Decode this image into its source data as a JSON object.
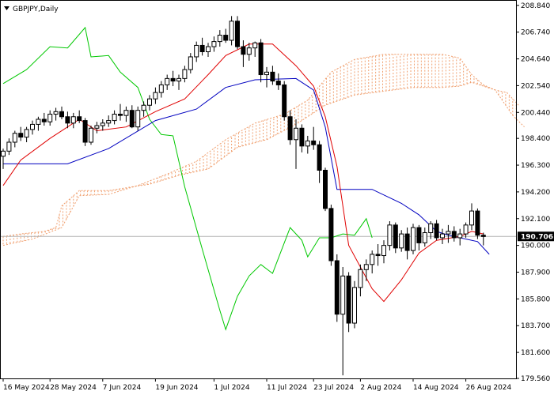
{
  "header": {
    "symbol_title": "GBPJPY,Daily"
  },
  "current_price_label": "190.706",
  "colors": {
    "background": "#ffffff",
    "frame": "#000000",
    "candle": "#000000",
    "tenkan": "#e00000",
    "kijun": "#0000c0",
    "chikou": "#00c800",
    "cloud": "#f0a070",
    "price_line": "#b4b4b4",
    "price_label_bg": "#000000"
  },
  "chart_data": {
    "type": "candlestick",
    "title": "GBPJPY,Daily",
    "indicator": "Ichimoku Kinko Hyo",
    "ylim": [
      179.56,
      209.2
    ],
    "y_ticks": [
      "208.840",
      "206.740",
      "204.640",
      "202.540",
      "200.440",
      "198.400",
      "196.300",
      "194.200",
      "192.100",
      "190.000",
      "187.900",
      "185.800",
      "183.700",
      "181.600",
      "179.560"
    ],
    "x_ticks": [
      "16 May 2024",
      "28 May 2024",
      "7 Jun 2024",
      "19 Jun 2024",
      "1 Jul 2024",
      "11 Jul 2024",
      "23 Jul 2024",
      "2 Aug 2024",
      "14 Aug 2024",
      "26 Aug 2024"
    ],
    "current_price": 190.706,
    "candles": [
      [
        197.0,
        197.6,
        196.0,
        197.4
      ],
      [
        197.4,
        198.4,
        197.1,
        198.1
      ],
      [
        198.1,
        199.0,
        197.7,
        198.8
      ],
      [
        198.8,
        199.3,
        198.2,
        198.5
      ],
      [
        198.5,
        199.3,
        198.1,
        199.1
      ],
      [
        199.1,
        199.8,
        198.7,
        199.5
      ],
      [
        199.5,
        200.1,
        199.0,
        199.9
      ],
      [
        199.9,
        200.4,
        199.4,
        199.7
      ],
      [
        199.7,
        200.6,
        199.4,
        200.3
      ],
      [
        200.3,
        200.8,
        199.8,
        200.5
      ],
      [
        200.5,
        200.9,
        199.9,
        200.1
      ],
      [
        200.1,
        200.5,
        199.2,
        199.6
      ],
      [
        199.6,
        200.4,
        199.2,
        200.1
      ],
      [
        200.1,
        200.6,
        199.6,
        199.8
      ],
      [
        199.8,
        200.0,
        197.8,
        198.1
      ],
      [
        198.1,
        199.4,
        197.9,
        199.2
      ],
      [
        199.2,
        199.7,
        198.8,
        199.4
      ],
      [
        199.4,
        199.9,
        199.0,
        199.6
      ],
      [
        199.6,
        200.2,
        199.3,
        199.8
      ],
      [
        199.8,
        200.6,
        199.5,
        200.3
      ],
      [
        200.3,
        201.1,
        199.8,
        200.2
      ],
      [
        200.2,
        200.9,
        199.7,
        200.6
      ],
      [
        200.6,
        201.0,
        199.2,
        199.3
      ],
      [
        199.3,
        200.9,
        199.0,
        200.6
      ],
      [
        200.6,
        201.3,
        200.1,
        201.0
      ],
      [
        201.0,
        201.8,
        200.6,
        201.5
      ],
      [
        201.5,
        202.4,
        201.1,
        202.0
      ],
      [
        202.0,
        202.9,
        201.6,
        202.6
      ],
      [
        202.6,
        203.4,
        202.2,
        203.1
      ],
      [
        203.1,
        203.7,
        202.5,
        202.9
      ],
      [
        202.9,
        203.4,
        202.2,
        203.1
      ],
      [
        203.1,
        204.1,
        202.8,
        203.8
      ],
      [
        203.8,
        205.1,
        203.5,
        204.8
      ],
      [
        204.8,
        206.0,
        204.4,
        205.7
      ],
      [
        205.7,
        206.3,
        204.9,
        205.2
      ],
      [
        205.2,
        205.9,
        204.8,
        205.6
      ],
      [
        205.6,
        206.4,
        205.2,
        206.0
      ],
      [
        206.0,
        206.9,
        205.6,
        206.5
      ],
      [
        206.5,
        207.0,
        205.9,
        206.1
      ],
      [
        206.1,
        208.0,
        205.7,
        207.6
      ],
      [
        207.6,
        208.0,
        205.4,
        205.6
      ],
      [
        205.6,
        206.1,
        204.0,
        205.0
      ],
      [
        205.0,
        205.9,
        204.5,
        205.5
      ],
      [
        205.5,
        206.0,
        204.8,
        205.9
      ],
      [
        205.9,
        206.2,
        202.8,
        203.4
      ],
      [
        203.4,
        204.0,
        202.4,
        203.6
      ],
      [
        203.6,
        204.1,
        202.6,
        202.9
      ],
      [
        202.9,
        203.5,
        202.2,
        202.6
      ],
      [
        202.6,
        202.9,
        199.8,
        200.1
      ],
      [
        200.1,
        200.6,
        197.9,
        198.3
      ],
      [
        198.3,
        199.9,
        196.0,
        199.2
      ],
      [
        199.2,
        199.5,
        197.3,
        197.8
      ],
      [
        197.8,
        198.6,
        197.2,
        198.2
      ],
      [
        198.2,
        199.3,
        197.5,
        197.9
      ],
      [
        197.9,
        198.2,
        194.9,
        195.9
      ],
      [
        195.9,
        196.1,
        192.7,
        192.9
      ],
      [
        192.9,
        193.2,
        188.4,
        188.8
      ],
      [
        188.8,
        189.3,
        184.0,
        184.6
      ],
      [
        184.6,
        188.3,
        179.8,
        187.6
      ],
      [
        187.6,
        187.9,
        183.2,
        183.9
      ],
      [
        183.9,
        187.2,
        183.5,
        186.7
      ],
      [
        186.7,
        188.5,
        186.0,
        188.1
      ],
      [
        188.1,
        188.9,
        187.2,
        188.5
      ],
      [
        188.5,
        189.6,
        187.8,
        189.3
      ],
      [
        189.3,
        190.1,
        188.4,
        189.2
      ],
      [
        189.2,
        190.4,
        188.6,
        190.0
      ],
      [
        190.0,
        191.9,
        189.6,
        191.6
      ],
      [
        191.6,
        191.8,
        189.4,
        189.8
      ],
      [
        189.8,
        191.2,
        189.5,
        190.9
      ],
      [
        190.9,
        191.4,
        188.9,
        189.6
      ],
      [
        189.6,
        191.7,
        189.3,
        191.4
      ],
      [
        191.4,
        191.6,
        189.6,
        190.2
      ],
      [
        190.2,
        191.4,
        189.9,
        191.0
      ],
      [
        191.0,
        191.9,
        190.5,
        191.7
      ],
      [
        191.7,
        192.0,
        190.4,
        190.6
      ],
      [
        190.6,
        191.3,
        190.1,
        190.9
      ],
      [
        190.9,
        191.6,
        190.2,
        191.1
      ],
      [
        191.1,
        191.5,
        190.3,
        190.6
      ],
      [
        190.6,
        191.3,
        190.0,
        190.9
      ],
      [
        190.9,
        191.8,
        190.6,
        191.6
      ],
      [
        191.6,
        193.3,
        191.2,
        192.7
      ],
      [
        192.7,
        192.9,
        190.5,
        190.8
      ],
      [
        190.8,
        191.0,
        190.0,
        190.7
      ]
    ],
    "tenkan": [
      [
        0,
        194.7
      ],
      [
        3,
        196.7
      ],
      [
        8,
        198.4
      ],
      [
        13,
        199.9
      ],
      [
        16,
        199.0
      ],
      [
        21,
        199.3
      ],
      [
        26,
        200.5
      ],
      [
        31,
        201.5
      ],
      [
        35,
        203.4
      ],
      [
        38,
        204.9
      ],
      [
        42,
        205.8
      ],
      [
        46,
        205.8
      ],
      [
        50,
        204.1
      ],
      [
        53,
        202.5
      ],
      [
        55,
        200.1
      ],
      [
        57,
        196.2
      ],
      [
        59,
        190.0
      ],
      [
        63,
        186.6
      ],
      [
        65,
        185.6
      ],
      [
        68,
        187.3
      ],
      [
        71,
        189.4
      ],
      [
        74,
        190.4
      ],
      [
        78,
        190.7
      ],
      [
        80,
        191.1
      ],
      [
        82,
        190.9
      ]
    ],
    "kijun": [
      [
        0,
        196.4
      ],
      [
        11,
        196.4
      ],
      [
        18,
        197.6
      ],
      [
        26,
        199.8
      ],
      [
        33,
        200.7
      ],
      [
        38,
        202.4
      ],
      [
        43,
        203.0
      ],
      [
        50,
        203.1
      ],
      [
        53,
        202.2
      ],
      [
        55,
        199.3
      ],
      [
        57,
        194.4
      ],
      [
        63,
        194.4
      ],
      [
        68,
        193.3
      ],
      [
        71,
        192.4
      ],
      [
        74,
        191.1
      ],
      [
        76,
        190.8
      ],
      [
        78,
        190.6
      ],
      [
        81,
        190.3
      ],
      [
        83,
        189.3
      ]
    ],
    "chikou": [
      [
        0,
        202.7
      ],
      [
        4,
        203.8
      ],
      [
        8,
        205.6
      ],
      [
        11,
        205.5
      ],
      [
        14,
        207.1
      ],
      [
        15,
        204.8
      ],
      [
        18,
        204.9
      ],
      [
        20,
        203.6
      ],
      [
        23,
        202.4
      ],
      [
        25,
        199.9
      ],
      [
        27,
        198.7
      ],
      [
        29,
        198.6
      ],
      [
        31,
        194.6
      ],
      [
        34,
        189.7
      ],
      [
        37,
        184.9
      ],
      [
        38,
        183.4
      ],
      [
        40,
        186.0
      ],
      [
        42,
        187.6
      ],
      [
        44,
        188.5
      ],
      [
        46,
        187.8
      ],
      [
        49,
        191.4
      ],
      [
        51,
        190.4
      ],
      [
        52,
        189.1
      ],
      [
        54,
        190.6
      ],
      [
        56,
        190.6
      ],
      [
        58,
        190.9
      ],
      [
        60,
        190.8
      ],
      [
        62,
        192.1
      ],
      [
        63,
        190.6
      ]
    ],
    "span_a": [
      [
        0,
        190.7
      ],
      [
        3,
        190.9
      ],
      [
        7,
        191.1
      ],
      [
        9,
        191.4
      ],
      [
        10,
        193.1
      ],
      [
        13,
        194.3
      ],
      [
        18,
        194.3
      ],
      [
        22,
        194.6
      ],
      [
        25,
        194.8
      ],
      [
        30,
        195.5
      ],
      [
        35,
        196.0
      ],
      [
        40,
        197.7
      ],
      [
        45,
        198.3
      ],
      [
        50,
        199.5
      ],
      [
        55,
        201.0
      ],
      [
        60,
        201.8
      ],
      [
        65,
        202.1
      ],
      [
        70,
        202.4
      ],
      [
        75,
        202.4
      ],
      [
        78,
        202.5
      ],
      [
        80,
        202.8
      ],
      [
        82,
        202.5
      ],
      [
        84,
        202.2
      ],
      [
        87,
        200.2
      ],
      [
        89,
        199.3
      ]
    ],
    "span_b": [
      [
        0,
        190.0
      ],
      [
        5,
        190.5
      ],
      [
        10,
        191.4
      ],
      [
        13,
        193.9
      ],
      [
        18,
        194.0
      ],
      [
        23,
        194.7
      ],
      [
        28,
        195.6
      ],
      [
        33,
        196.6
      ],
      [
        38,
        198.3
      ],
      [
        43,
        199.6
      ],
      [
        48,
        200.3
      ],
      [
        52,
        201.4
      ],
      [
        56,
        203.6
      ],
      [
        60,
        204.6
      ],
      [
        65,
        205.0
      ],
      [
        70,
        205.0
      ],
      [
        75,
        205.0
      ],
      [
        78,
        204.7
      ],
      [
        80,
        203.4
      ],
      [
        82,
        202.6
      ],
      [
        84,
        202.2
      ],
      [
        86,
        202.0
      ],
      [
        88,
        201.0
      ]
    ]
  }
}
